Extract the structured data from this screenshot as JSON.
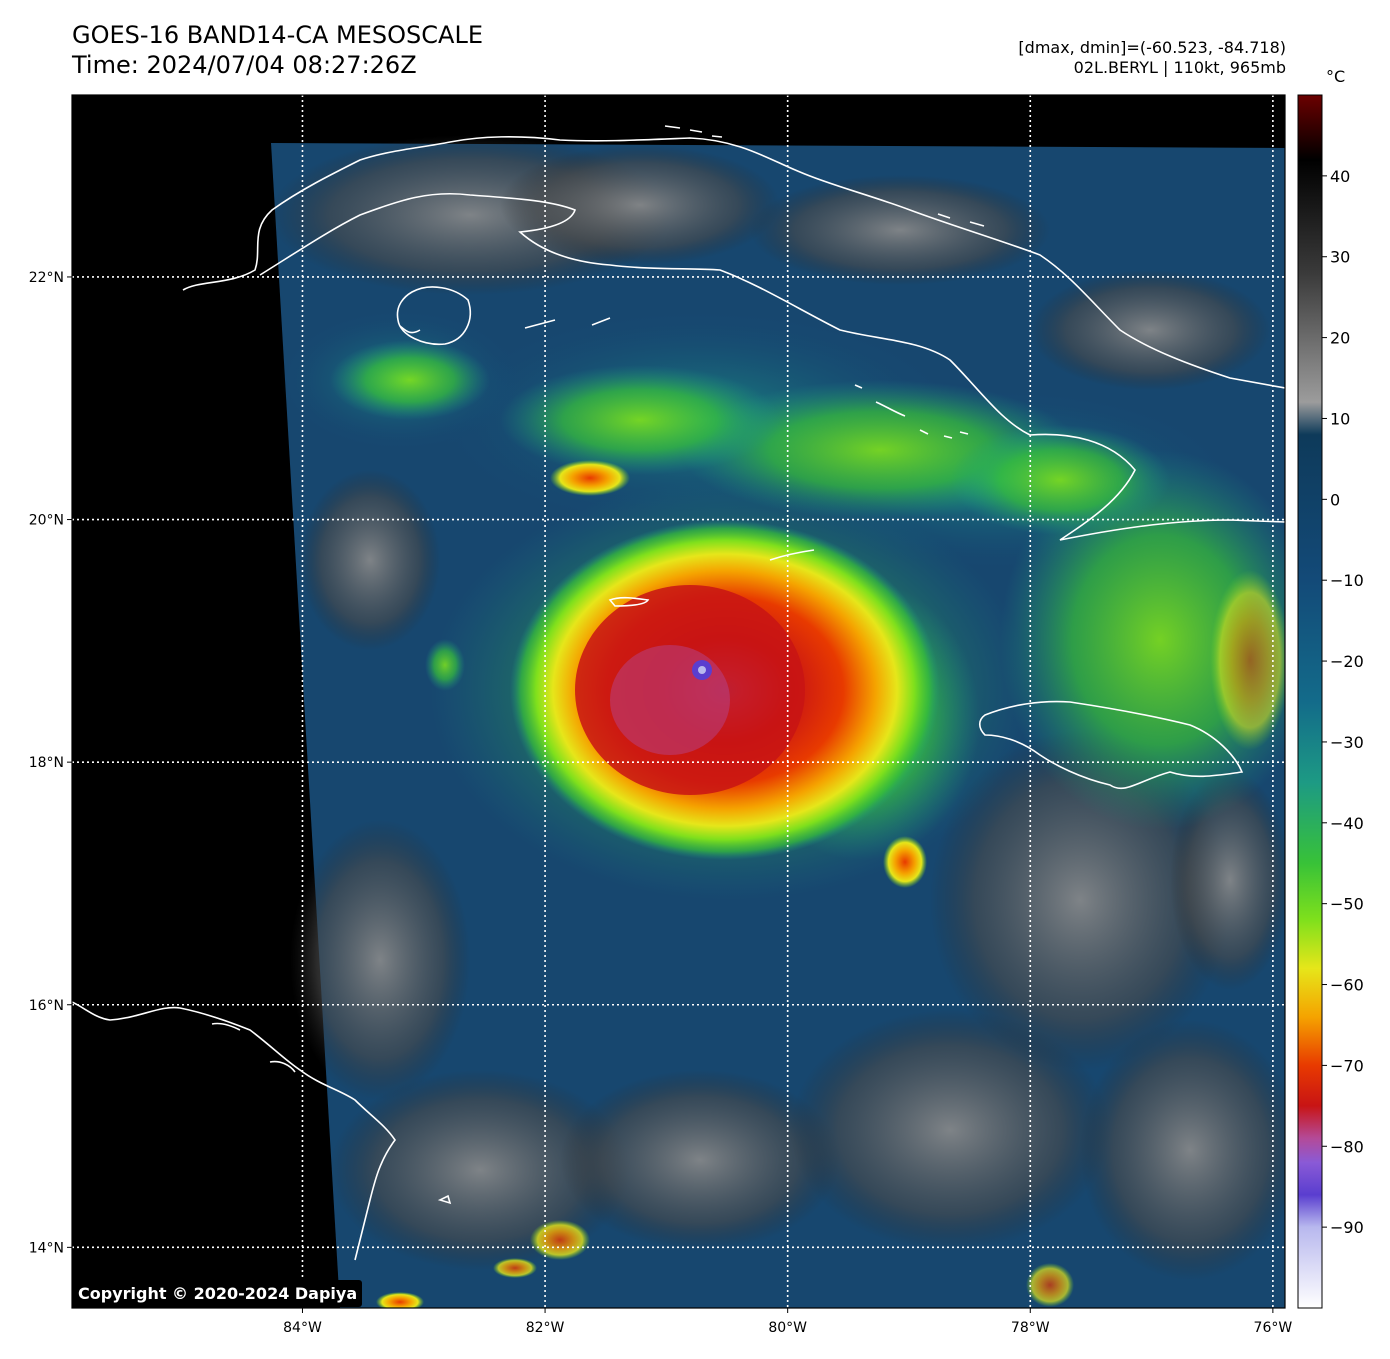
{
  "header": {
    "title_line1": "GOES-16 BAND14-CA MESOSCALE",
    "title_line2": "Time: 2024/07/04 08:27:26Z",
    "info_line1": "[dmax, dmin]=(-60.523, -84.718)",
    "info_line2": "02L.BERYL | 110kt, 965mb"
  },
  "map": {
    "lon_range": [
      -85.9,
      -75.9
    ],
    "lat_range": [
      13.5,
      23.5
    ],
    "lon_ticks": [
      {
        "value": -84,
        "label": "84°W"
      },
      {
        "value": -82,
        "label": "82°W"
      },
      {
        "value": -80,
        "label": "80°W"
      },
      {
        "value": -78,
        "label": "78°W"
      },
      {
        "value": -76,
        "label": "76°W"
      }
    ],
    "lat_ticks": [
      {
        "value": 22,
        "label": "22°N"
      },
      {
        "value": 20,
        "label": "20°N"
      },
      {
        "value": 18,
        "label": "18°N"
      },
      {
        "value": 16,
        "label": "16°N"
      },
      {
        "value": 14,
        "label": "14°N"
      }
    ],
    "gridlines": "dotted-white",
    "storm_center": {
      "lon": -80.6,
      "lat": 18.75
    }
  },
  "colorbar": {
    "unit": "°C",
    "range": [
      -100,
      50
    ],
    "ticks": [
      {
        "value": 40,
        "label": "40"
      },
      {
        "value": 30,
        "label": "30"
      },
      {
        "value": 20,
        "label": "20"
      },
      {
        "value": 10,
        "label": "10"
      },
      {
        "value": 0,
        "label": "0"
      },
      {
        "value": -10,
        "label": "−10"
      },
      {
        "value": -20,
        "label": "−20"
      },
      {
        "value": -30,
        "label": "−30"
      },
      {
        "value": -40,
        "label": "−40"
      },
      {
        "value": -50,
        "label": "−50"
      },
      {
        "value": -60,
        "label": "−60"
      },
      {
        "value": -70,
        "label": "−70"
      },
      {
        "value": -80,
        "label": "−80"
      },
      {
        "value": -90,
        "label": "−90"
      }
    ],
    "stops": [
      {
        "value": 50,
        "color": "#6b0000"
      },
      {
        "value": 42,
        "color": "#000000"
      },
      {
        "value": 28,
        "color": "#3a3a3a"
      },
      {
        "value": 12,
        "color": "#9c9c9c"
      },
      {
        "value": 8,
        "color": "#0e3a5a"
      },
      {
        "value": -10,
        "color": "#134a78"
      },
      {
        "value": -25,
        "color": "#136b8a"
      },
      {
        "value": -35,
        "color": "#1d9a84"
      },
      {
        "value": -45,
        "color": "#38c238"
      },
      {
        "value": -52,
        "color": "#7fe01c"
      },
      {
        "value": -58,
        "color": "#e6e61a"
      },
      {
        "value": -64,
        "color": "#f5a300"
      },
      {
        "value": -70,
        "color": "#e83a00"
      },
      {
        "value": -75,
        "color": "#c81414"
      },
      {
        "value": -79,
        "color": "#b44a98"
      },
      {
        "value": -82,
        "color": "#8a5ad6"
      },
      {
        "value": -86,
        "color": "#5a3ecf"
      },
      {
        "value": -90,
        "color": "#b8b8ee"
      },
      {
        "value": -100,
        "color": "#ffffff"
      }
    ]
  },
  "copyright": "Copyright © 2020-2024 Dapiya"
}
